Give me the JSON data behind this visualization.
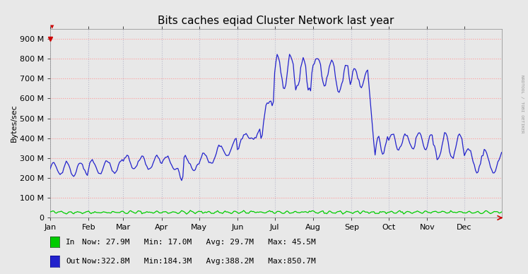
{
  "title": "Bits caches eqiad Cluster Network last year",
  "ylabel": "Bytes/sec",
  "background_color": "#E8E8E8",
  "plot_bg_color": "#E8E8E8",
  "grid_color_h": "#FF9999",
  "grid_color_v": "#BBBBCC",
  "x_tick_labels": [
    "Jan",
    "Feb",
    "Mar",
    "Apr",
    "May",
    "Jun",
    "Jul",
    "Aug",
    "Sep",
    "Oct",
    "Nov",
    "Dec"
  ],
  "ylim_max": 950000000,
  "y_ticks": [
    0,
    100000000,
    200000000,
    300000000,
    400000000,
    500000000,
    600000000,
    700000000,
    800000000,
    900000000
  ],
  "in_color": "#00CC00",
  "out_color": "#2222CC",
  "title_fontsize": 11,
  "axis_fontsize": 8,
  "legend_fontsize": 8,
  "watermark": "NRDTOOL / TOBI OETIKER",
  "month_starts": [
    0,
    31,
    59,
    90,
    120,
    151,
    181,
    212,
    243,
    273,
    304,
    334
  ],
  "n_points": 365
}
